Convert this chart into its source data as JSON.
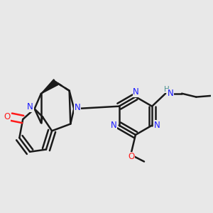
{
  "bg_color": "#e8e8e8",
  "bond_color": "#1a1a1a",
  "N_color": "#1a1aff",
  "O_color": "#ff1a1a",
  "NH_color": "#4a9090",
  "line_width": 1.8,
  "figsize": [
    3.0,
    3.0
  ],
  "dpi": 100,
  "xlim": [
    0.05,
    0.95
  ],
  "ylim": [
    0.1,
    0.9
  ]
}
